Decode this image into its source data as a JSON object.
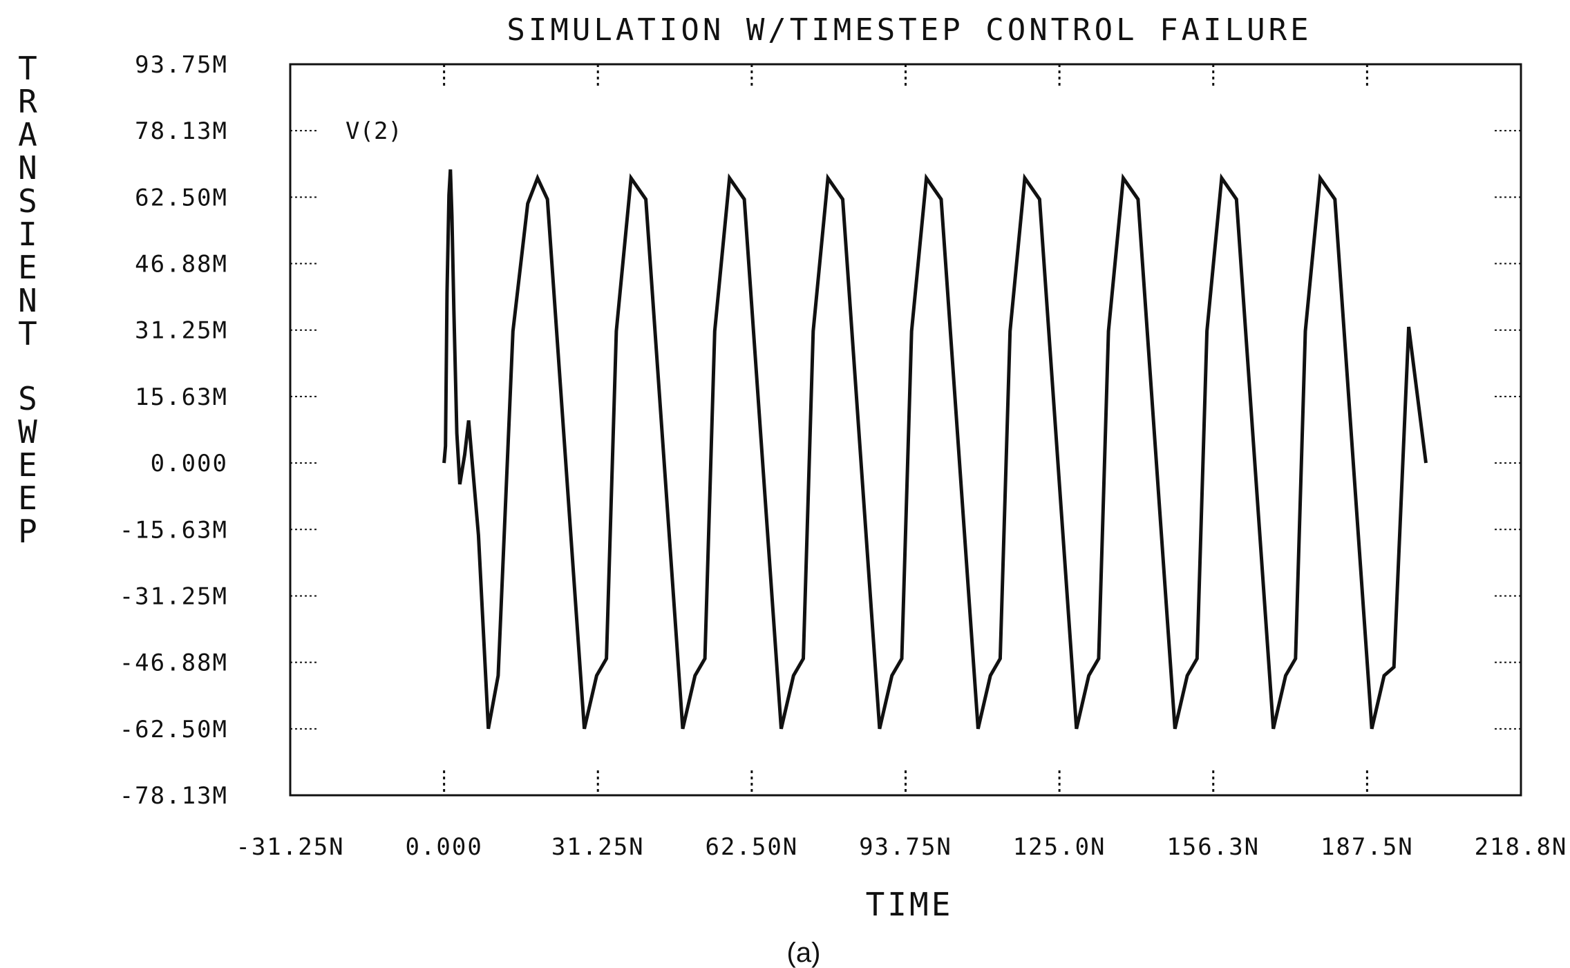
{
  "chart_data": {
    "type": "line",
    "title": "SIMULATION W/TIMESTEP CONTROL FAILURE",
    "xlabel": "TIME",
    "ylabel": "TRANSIENT SWEEP",
    "caption": "(a)",
    "x_ticks": [
      "-31.25N",
      "0.000",
      "31.25N",
      "62.50N",
      "93.75N",
      "125.0N",
      "156.3N",
      "187.5N",
      "218.8N"
    ],
    "y_ticks": [
      "93.75M",
      "78.13M",
      "62.50M",
      "46.88M",
      "31.25M",
      "15.63M",
      "0.000",
      "-15.63M",
      "-31.25M",
      "-46.88M",
      "-62.50M",
      "-78.13M"
    ],
    "xlim": [
      -31.25,
      218.8
    ],
    "ylim": [
      -78.13,
      93.75
    ],
    "x_unit": "ns",
    "y_unit": "mV",
    "grid": false,
    "series": [
      {
        "name": "V(2)",
        "color": "#111111",
        "x": [
          0.0,
          0.3,
          0.6,
          1.0,
          1.3,
          1.6,
          2.0,
          2.6,
          3.2,
          4.2,
          5.0,
          7.0,
          9.0,
          11.0,
          14.0,
          17.0,
          19.0,
          21.0,
          28.5,
          31.0,
          33.0,
          35.0,
          38.0,
          41.0,
          48.5,
          51.0,
          53.0,
          55.0,
          58.0,
          61.0,
          68.5,
          71.0,
          73.0,
          75.0,
          78.0,
          81.0,
          88.5,
          91.0,
          93.0,
          95.0,
          98.0,
          101.0,
          108.5,
          111.0,
          113.0,
          115.0,
          118.0,
          121.0,
          128.5,
          131.0,
          133.0,
          135.0,
          138.0,
          141.0,
          148.5,
          151.0,
          153.0,
          155.0,
          158.0,
          161.0,
          168.5,
          171.0,
          173.0,
          175.0,
          178.0,
          181.0,
          188.5,
          191.0,
          193.0,
          196.0,
          199.5
        ],
        "y": [
          0.0,
          4.0,
          40.0,
          63.0,
          69.0,
          58.0,
          36.0,
          7.0,
          -5.0,
          2.0,
          10.0,
          -17.0,
          -62.5,
          -50.0,
          31.0,
          61.0,
          67.0,
          62.0,
          -62.5,
          -50.0,
          -46.0,
          31.0,
          67.0,
          62.0,
          -62.5,
          -50.0,
          -46.0,
          31.0,
          67.0,
          62.0,
          -62.5,
          -50.0,
          -46.0,
          31.0,
          67.0,
          62.0,
          -62.5,
          -50.0,
          -46.0,
          31.0,
          67.0,
          62.0,
          -62.5,
          -50.0,
          -46.0,
          31.0,
          67.0,
          62.0,
          -62.5,
          -50.0,
          -46.0,
          31.0,
          67.0,
          62.0,
          -62.5,
          -50.0,
          -46.0,
          31.0,
          67.0,
          62.0,
          -62.5,
          -50.0,
          -46.0,
          31.0,
          67.0,
          62.0,
          -62.5,
          -50.0,
          -48.0,
          32.0,
          0.0
        ]
      }
    ]
  }
}
